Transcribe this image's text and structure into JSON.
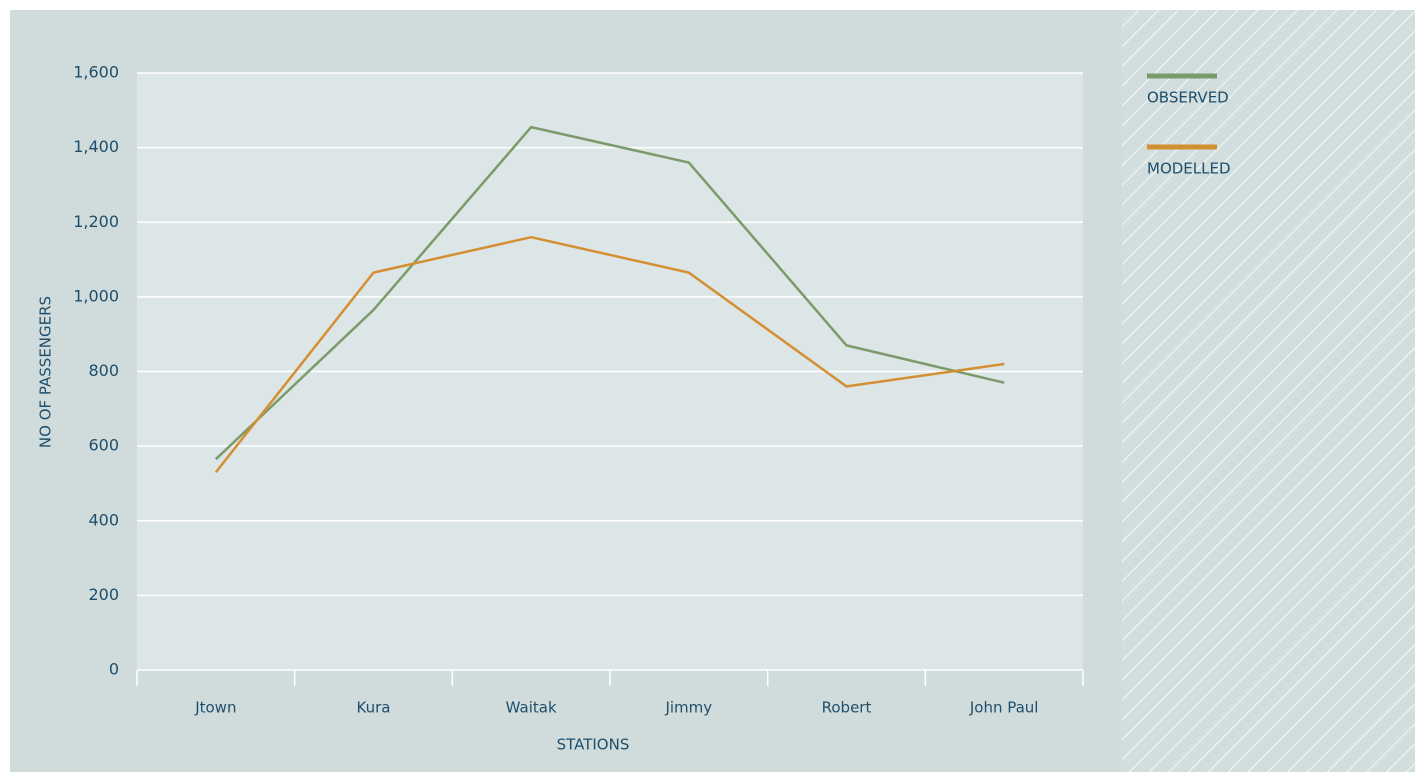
{
  "chart_data": {
    "type": "line",
    "categories": [
      "Jtown",
      "Kura",
      "Waitak",
      "Jimmy",
      "Robert",
      "John Paul"
    ],
    "series": [
      {
        "name": "OBSERVED",
        "color": "#7b9b6b",
        "values": [
          565,
          965,
          1455,
          1360,
          870,
          770
        ]
      },
      {
        "name": "MODELLED",
        "color": "#d48f33",
        "values": [
          530,
          1065,
          1160,
          1065,
          760,
          820
        ]
      }
    ],
    "x_label": "STATIONS",
    "y_label": "NO OF PASSENGERS",
    "ylim": [
      0,
      1600
    ],
    "yticks": [
      0,
      200,
      400,
      600,
      800,
      {
        "value": 1000,
        "label": "1,000"
      },
      {
        "value": 1200,
        "label": "1,200"
      },
      {
        "value": 1400,
        "label": "1,400"
      },
      {
        "value": 1600,
        "label": "1,600"
      }
    ],
    "grid": true,
    "legend": "right"
  }
}
